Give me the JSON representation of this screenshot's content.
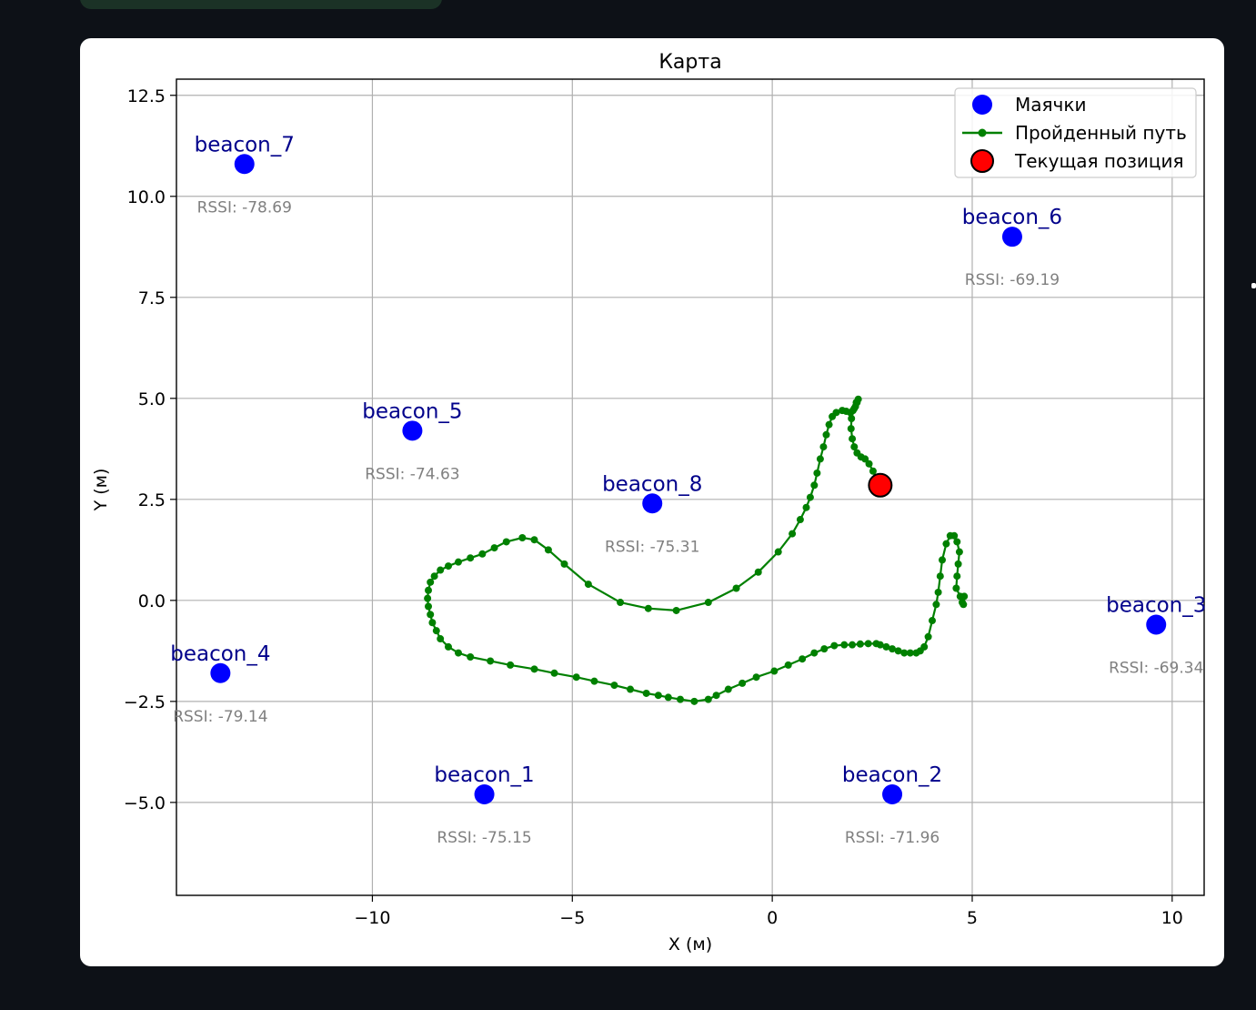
{
  "chart_data": {
    "type": "scatter",
    "title": "Карта",
    "xlabel": "X (м)",
    "ylabel": "Y (м)",
    "xlim": [
      -14.9,
      10.8
    ],
    "ylim": [
      -7.3,
      12.9
    ],
    "xticks": [
      -10,
      -5,
      0,
      5,
      10
    ],
    "xtick_labels": [
      "−10",
      "−5",
      "0",
      "5",
      "10"
    ],
    "yticks": [
      -5.0,
      -2.5,
      0.0,
      2.5,
      5.0,
      7.5,
      10.0,
      12.5
    ],
    "ytick_labels": [
      "−5.0",
      "−2.5",
      "0.0",
      "2.5",
      "5.0",
      "7.5",
      "10.0",
      "12.5"
    ],
    "grid": true,
    "legend_position": "top-right",
    "legend": [
      {
        "label": "Маячки",
        "marker": "circle",
        "color": "#0000ff"
      },
      {
        "label": "Пройденный путь",
        "marker": "line-dot",
        "color": "#008000"
      },
      {
        "label": "Текущая позиция",
        "marker": "circle-outlined",
        "color": "#ff0000"
      }
    ],
    "beacons": [
      {
        "name": "beacon_1",
        "x": -7.2,
        "y": -4.8,
        "rssi_label": "RSSI: -75.15"
      },
      {
        "name": "beacon_2",
        "x": 3.0,
        "y": -4.8,
        "rssi_label": "RSSI: -71.96"
      },
      {
        "name": "beacon_3",
        "x": 9.6,
        "y": -0.6,
        "rssi_label": "RSSI: -69.34"
      },
      {
        "name": "beacon_4",
        "x": -13.8,
        "y": -1.8,
        "rssi_label": "RSSI: -79.14"
      },
      {
        "name": "beacon_5",
        "x": -9.0,
        "y": 4.2,
        "rssi_label": "RSSI: -74.63"
      },
      {
        "name": "beacon_6",
        "x": 6.0,
        "y": 9.0,
        "rssi_label": "RSSI: -69.19"
      },
      {
        "name": "beacon_7",
        "x": -13.2,
        "y": 10.8,
        "rssi_label": "RSSI: -78.69"
      },
      {
        "name": "beacon_8",
        "x": -3.0,
        "y": 2.4,
        "rssi_label": "RSSI: -75.31"
      }
    ],
    "path": [
      [
        4.8,
        0.1
      ],
      [
        4.78,
        -0.1
      ],
      [
        4.75,
        -0.05
      ],
      [
        4.7,
        0.1
      ],
      [
        4.6,
        0.3
      ],
      [
        4.62,
        0.6
      ],
      [
        4.65,
        0.9
      ],
      [
        4.68,
        1.2
      ],
      [
        4.62,
        1.45
      ],
      [
        4.55,
        1.6
      ],
      [
        4.45,
        1.6
      ],
      [
        4.35,
        1.4
      ],
      [
        4.25,
        1.0
      ],
      [
        4.2,
        0.6
      ],
      [
        4.15,
        0.2
      ],
      [
        4.1,
        -0.1
      ],
      [
        4.0,
        -0.5
      ],
      [
        3.9,
        -0.9
      ],
      [
        3.8,
        -1.15
      ],
      [
        3.7,
        -1.25
      ],
      [
        3.6,
        -1.3
      ],
      [
        3.45,
        -1.3
      ],
      [
        3.3,
        -1.3
      ],
      [
        3.15,
        -1.25
      ],
      [
        3.0,
        -1.2
      ],
      [
        2.85,
        -1.15
      ],
      [
        2.7,
        -1.1
      ],
      [
        2.6,
        -1.07
      ],
      [
        2.4,
        -1.07
      ],
      [
        2.2,
        -1.08
      ],
      [
        2.0,
        -1.1
      ],
      [
        1.8,
        -1.1
      ],
      [
        1.55,
        -1.12
      ],
      [
        1.3,
        -1.2
      ],
      [
        1.05,
        -1.3
      ],
      [
        0.75,
        -1.45
      ],
      [
        0.4,
        -1.6
      ],
      [
        0.05,
        -1.75
      ],
      [
        -0.4,
        -1.9
      ],
      [
        -0.75,
        -2.05
      ],
      [
        -1.1,
        -2.2
      ],
      [
        -1.4,
        -2.35
      ],
      [
        -1.6,
        -2.45
      ],
      [
        -1.95,
        -2.5
      ],
      [
        -2.3,
        -2.45
      ],
      [
        -2.6,
        -2.4
      ],
      [
        -2.85,
        -2.35
      ],
      [
        -3.15,
        -2.3
      ],
      [
        -3.55,
        -2.2
      ],
      [
        -3.95,
        -2.1
      ],
      [
        -4.45,
        -2.0
      ],
      [
        -4.9,
        -1.9
      ],
      [
        -5.45,
        -1.8
      ],
      [
        -5.95,
        -1.7
      ],
      [
        -6.55,
        -1.6
      ],
      [
        -7.05,
        -1.5
      ],
      [
        -7.55,
        -1.4
      ],
      [
        -7.85,
        -1.3
      ],
      [
        -8.1,
        -1.15
      ],
      [
        -8.3,
        -0.95
      ],
      [
        -8.4,
        -0.75
      ],
      [
        -8.5,
        -0.55
      ],
      [
        -8.55,
        -0.35
      ],
      [
        -8.6,
        -0.15
      ],
      [
        -8.62,
        0.05
      ],
      [
        -8.6,
        0.25
      ],
      [
        -8.55,
        0.45
      ],
      [
        -8.45,
        0.6
      ],
      [
        -8.3,
        0.75
      ],
      [
        -8.1,
        0.85
      ],
      [
        -7.85,
        0.95
      ],
      [
        -7.55,
        1.05
      ],
      [
        -7.25,
        1.15
      ],
      [
        -6.95,
        1.3
      ],
      [
        -6.65,
        1.45
      ],
      [
        -6.25,
        1.55
      ],
      [
        -5.95,
        1.5
      ],
      [
        -5.6,
        1.25
      ],
      [
        -5.2,
        0.9
      ],
      [
        -4.6,
        0.4
      ],
      [
        -3.8,
        -0.05
      ],
      [
        -3.1,
        -0.2
      ],
      [
        -2.4,
        -0.25
      ],
      [
        -1.6,
        -0.05
      ],
      [
        -0.9,
        0.3
      ],
      [
        -0.35,
        0.7
      ],
      [
        0.15,
        1.2
      ],
      [
        0.5,
        1.65
      ],
      [
        0.7,
        2.0
      ],
      [
        0.85,
        2.3
      ],
      [
        0.95,
        2.55
      ],
      [
        1.05,
        2.85
      ],
      [
        1.12,
        3.15
      ],
      [
        1.2,
        3.5
      ],
      [
        1.28,
        3.8
      ],
      [
        1.35,
        4.1
      ],
      [
        1.42,
        4.35
      ],
      [
        1.5,
        4.55
      ],
      [
        1.6,
        4.65
      ],
      [
        1.75,
        4.7
      ],
      [
        1.85,
        4.68
      ],
      [
        1.95,
        4.65
      ],
      [
        2.02,
        4.7
      ],
      [
        2.08,
        4.8
      ],
      [
        2.12,
        4.9
      ],
      [
        2.15,
        4.98
      ],
      [
        2.1,
        4.9
      ],
      [
        2.05,
        4.75
      ],
      [
        1.98,
        4.5
      ],
      [
        1.97,
        4.25
      ],
      [
        2.0,
        4.0
      ],
      [
        2.05,
        3.8
      ],
      [
        2.12,
        3.65
      ],
      [
        2.22,
        3.55
      ],
      [
        2.32,
        3.5
      ],
      [
        2.42,
        3.38
      ],
      [
        2.52,
        3.2
      ],
      [
        2.6,
        3.0
      ],
      [
        2.7,
        2.85
      ]
    ],
    "current_position": {
      "x": 2.7,
      "y": 2.85
    }
  }
}
